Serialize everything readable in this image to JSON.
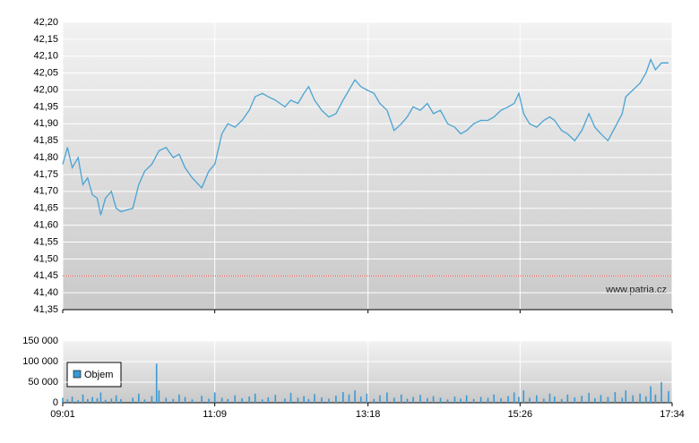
{
  "chart_data": [
    {
      "type": "line",
      "watermark": "www.patria.cz",
      "color": "#4aa3d4",
      "grid": true,
      "reference_line": 41.45,
      "reference_color": "#e03030",
      "x": [
        "09:01",
        "09:05",
        "09:09",
        "09:14",
        "09:18",
        "09:22",
        "09:26",
        "09:30",
        "09:33",
        "09:37",
        "09:42",
        "09:46",
        "09:50",
        "10:00",
        "10:05",
        "10:10",
        "10:16",
        "10:22",
        "10:28",
        "10:34",
        "10:39",
        "10:44",
        "10:50",
        "10:58",
        "11:04",
        "11:09",
        "11:15",
        "11:20",
        "11:26",
        "11:32",
        "11:38",
        "11:43",
        "11:49",
        "11:54",
        "12:00",
        "12:08",
        "12:13",
        "12:19",
        "12:24",
        "12:28",
        "12:33",
        "12:39",
        "12:45",
        "12:51",
        "12:57",
        "13:02",
        "13:07",
        "13:12",
        "13:17",
        "13:23",
        "13:28",
        "13:34",
        "13:40",
        "13:46",
        "13:51",
        "13:56",
        "14:02",
        "14:08",
        "14:13",
        "14:19",
        "14:25",
        "14:31",
        "14:36",
        "14:41",
        "14:47",
        "14:53",
        "14:59",
        "15:04",
        "15:10",
        "15:16",
        "15:21",
        "15:25",
        "15:29",
        "15:34",
        "15:40",
        "15:46",
        "15:51",
        "15:55",
        "16:01",
        "16:06",
        "16:12",
        "16:18",
        "16:24",
        "16:29",
        "16:34",
        "16:40",
        "16:46",
        "16:52",
        "16:55",
        "17:01",
        "17:07",
        "17:12",
        "17:16",
        "17:20",
        "17:25",
        "17:31"
      ],
      "values": [
        41.78,
        41.83,
        41.77,
        41.8,
        41.72,
        41.74,
        41.69,
        41.68,
        41.63,
        41.68,
        41.7,
        41.65,
        41.64,
        41.65,
        41.72,
        41.76,
        41.78,
        41.82,
        41.83,
        41.8,
        41.81,
        41.77,
        41.74,
        41.71,
        41.76,
        41.78,
        41.87,
        41.9,
        41.89,
        41.91,
        41.94,
        41.98,
        41.99,
        41.98,
        41.97,
        41.95,
        41.97,
        41.96,
        41.99,
        42.01,
        41.97,
        41.94,
        41.92,
        41.93,
        41.97,
        42.0,
        42.03,
        42.01,
        42.0,
        41.99,
        41.96,
        41.94,
        41.88,
        41.9,
        41.92,
        41.95,
        41.94,
        41.96,
        41.93,
        41.94,
        41.9,
        41.89,
        41.87,
        41.88,
        41.9,
        41.91,
        41.91,
        41.92,
        41.94,
        41.95,
        41.96,
        41.99,
        41.93,
        41.9,
        41.89,
        41.91,
        41.92,
        41.91,
        41.88,
        41.87,
        41.85,
        41.88,
        41.93,
        41.89,
        41.87,
        41.85,
        41.89,
        41.93,
        41.98,
        42.0,
        42.02,
        42.05,
        42.09,
        42.06,
        42.08,
        42.08
      ],
      "xlim": [
        "09:01",
        "17:34"
      ],
      "ylim": [
        41.35,
        42.2
      ],
      "yticks": [
        {
          "value": 41.35,
          "label": "41,35"
        },
        {
          "value": 41.4,
          "label": "41,40"
        },
        {
          "value": 41.45,
          "label": "41,45"
        },
        {
          "value": 41.5,
          "label": "41,50"
        },
        {
          "value": 41.55,
          "label": "41,55"
        },
        {
          "value": 41.6,
          "label": "41,60"
        },
        {
          "value": 41.65,
          "label": "41,65"
        },
        {
          "value": 41.7,
          "label": "41,70"
        },
        {
          "value": 41.75,
          "label": "41,75"
        },
        {
          "value": 41.8,
          "label": "41,80"
        },
        {
          "value": 41.85,
          "label": "41,85"
        },
        {
          "value": 41.9,
          "label": "41,90"
        },
        {
          "value": 41.95,
          "label": "41,95"
        },
        {
          "value": 42.0,
          "label": "42,00"
        },
        {
          "value": 42.05,
          "label": "42,05"
        },
        {
          "value": 42.1,
          "label": "42,10"
        },
        {
          "value": 42.15,
          "label": "42,15"
        },
        {
          "value": 42.2,
          "label": "42,20"
        }
      ]
    },
    {
      "type": "bar",
      "grid": true,
      "x": [
        "09:01",
        "09:05",
        "09:09",
        "09:14",
        "09:18",
        "09:22",
        "09:26",
        "09:30",
        "09:33",
        "09:37",
        "09:42",
        "09:46",
        "09:50",
        "10:00",
        "10:05",
        "10:10",
        "10:16",
        "10:20",
        "10:22",
        "10:28",
        "10:34",
        "10:39",
        "10:44",
        "10:50",
        "10:58",
        "11:04",
        "11:09",
        "11:15",
        "11:20",
        "11:26",
        "11:32",
        "11:38",
        "11:43",
        "11:49",
        "11:54",
        "12:00",
        "12:08",
        "12:13",
        "12:19",
        "12:24",
        "12:28",
        "12:33",
        "12:39",
        "12:45",
        "12:51",
        "12:57",
        "13:02",
        "13:07",
        "13:12",
        "13:17",
        "13:23",
        "13:28",
        "13:34",
        "13:40",
        "13:46",
        "13:51",
        "13:56",
        "14:02",
        "14:08",
        "14:13",
        "14:19",
        "14:25",
        "14:31",
        "14:36",
        "14:41",
        "14:47",
        "14:53",
        "14:59",
        "15:04",
        "15:10",
        "15:16",
        "15:21",
        "15:25",
        "15:29",
        "15:34",
        "15:40",
        "15:46",
        "15:51",
        "15:55",
        "16:01",
        "16:06",
        "16:12",
        "16:18",
        "16:24",
        "16:29",
        "16:34",
        "16:40",
        "16:46",
        "16:52",
        "16:55",
        "17:01",
        "17:07",
        "17:12",
        "17:16",
        "17:20",
        "17:25",
        "17:31"
      ],
      "series": [
        {
          "name": "Objem",
          "color": "#3a9ad4",
          "values": [
            12000,
            8000,
            15000,
            6000,
            20000,
            9000,
            14000,
            11000,
            25000,
            7000,
            10000,
            18000,
            9000,
            12000,
            22000,
            8000,
            16000,
            95000,
            30000,
            12000,
            9000,
            20000,
            14000,
            8000,
            17000,
            10000,
            25000,
            12000,
            9000,
            18000,
            11000,
            15000,
            22000,
            8000,
            13000,
            19000,
            10000,
            24000,
            12000,
            16000,
            9000,
            21000,
            13000,
            10000,
            17000,
            26000,
            20000,
            30000,
            15000,
            22000,
            9000,
            18000,
            25000,
            12000,
            20000,
            10000,
            14000,
            19000,
            11000,
            16000,
            12000,
            8000,
            15000,
            10000,
            18000,
            9000,
            14000,
            12000,
            20000,
            11000,
            16000,
            25000,
            14000,
            30000,
            12000,
            18000,
            10000,
            22000,
            15000,
            9000,
            20000,
            13000,
            17000,
            24000,
            11000,
            19000,
            14000,
            26000,
            12000,
            30000,
            18000,
            22000,
            15000,
            40000,
            20000,
            50000,
            28000
          ]
        }
      ],
      "xlim": [
        "09:01",
        "17:34"
      ],
      "xticks": [
        "09:01",
        "11:09",
        "13:18",
        "15:26",
        "17:34"
      ],
      "ylim": [
        0,
        150000
      ],
      "yticks": [
        0,
        {
          "value": 50000,
          "label": "50 000"
        },
        {
          "value": 100000,
          "label": "100 000"
        },
        {
          "value": 150000,
          "label": "150 000"
        }
      ]
    }
  ]
}
